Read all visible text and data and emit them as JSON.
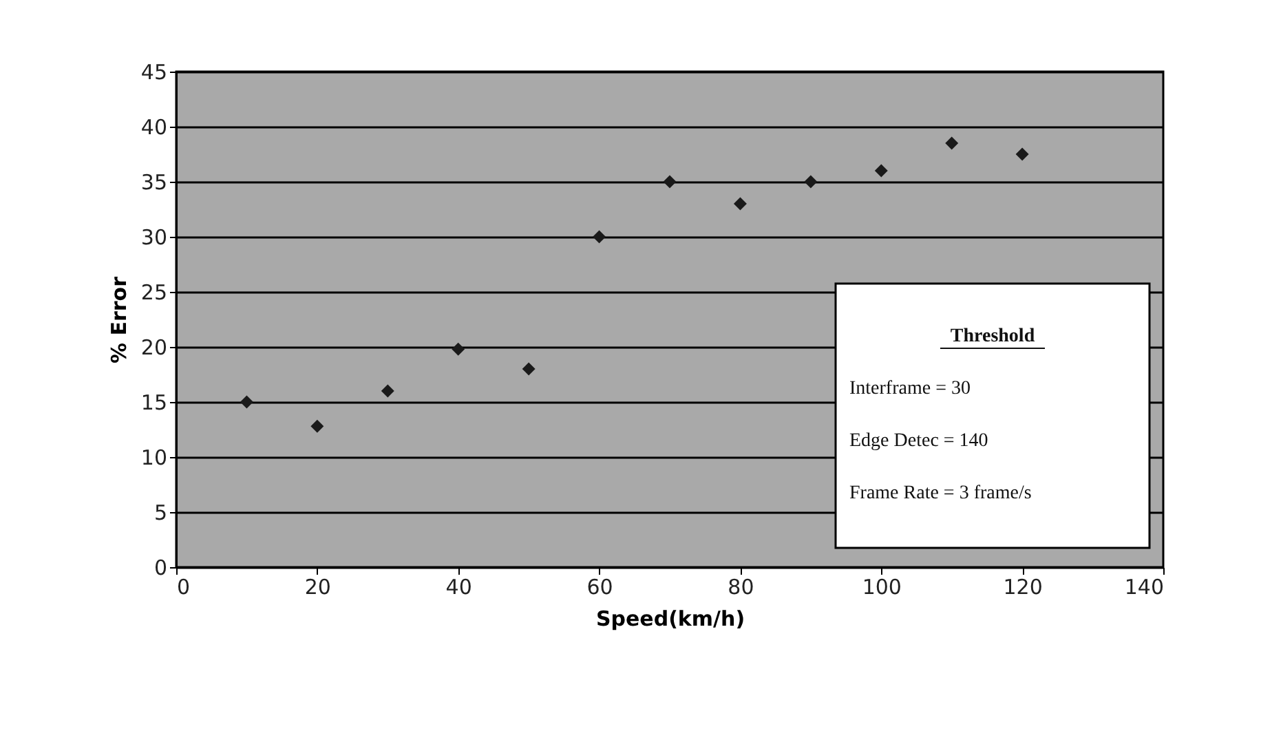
{
  "chart_data": {
    "type": "scatter",
    "xlabel": "Speed(km/h)",
    "ylabel": "% Error",
    "x": [
      10,
      20,
      30,
      40,
      50,
      60,
      70,
      80,
      90,
      100,
      110,
      120
    ],
    "series": [
      {
        "color": "#1a1a1a",
        "values": [
          15,
          12.8,
          16,
          19.8,
          18,
          30,
          35,
          33,
          35,
          36,
          38.5,
          37.5
        ]
      }
    ],
    "xlim": [
      0,
      140
    ],
    "xticks": [
      0,
      20,
      40,
      60,
      80,
      100,
      120,
      140
    ],
    "ylim": [
      0,
      45
    ],
    "yticks": [
      0,
      5,
      10,
      15,
      20,
      25,
      30,
      35,
      40,
      45
    ],
    "grid": "y",
    "marker": "diamond",
    "annotations": [
      "Threshold",
      "Interframe  =  30",
      "Edge Detec =  140",
      "Frame Rate = 3 frame/s"
    ]
  }
}
